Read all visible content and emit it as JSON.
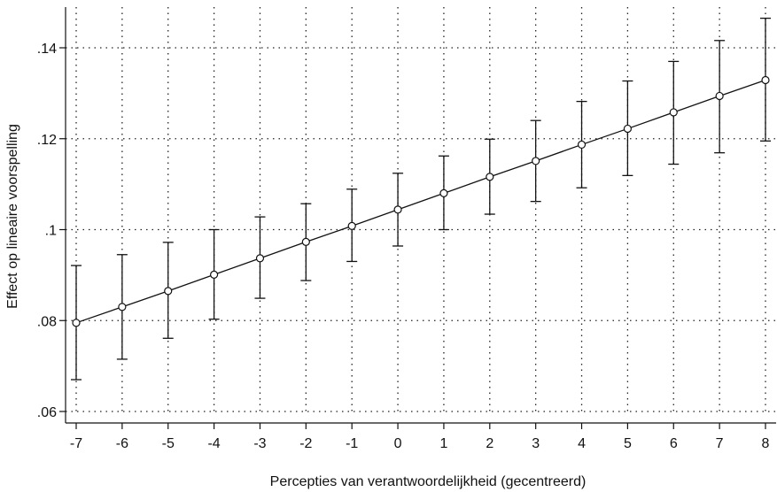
{
  "chart_data": {
    "type": "line",
    "title": "",
    "xlabel": "Percepties van verantwoordelijkheid (gecentreerd)",
    "ylabel": "Effect op lineaire voorspelling",
    "xlim": [
      -7,
      8
    ],
    "ylim": [
      0.06,
      0.14
    ],
    "x_ticks": [
      "-7",
      "-6",
      "-5",
      "-4",
      "-3",
      "-2",
      "-1",
      "0",
      "1",
      "2",
      "3",
      "4",
      "5",
      "6",
      "7",
      "8"
    ],
    "y_ticks": [
      {
        "value": 0.06,
        "label": ".06"
      },
      {
        "value": 0.08,
        "label": ".08"
      },
      {
        "value": 0.1,
        "label": ".1"
      },
      {
        "value": 0.12,
        "label": ".12"
      },
      {
        "value": 0.14,
        "label": ".14"
      }
    ],
    "grid": true,
    "series": [
      {
        "x": [
          -7,
          -6,
          -5,
          -4,
          -3,
          -2,
          -1,
          0,
          1,
          2,
          3,
          4,
          5,
          6,
          7,
          8
        ],
        "values": [
          0.0795,
          0.083,
          0.0865,
          0.0901,
          0.0937,
          0.0973,
          0.1008,
          0.1044,
          0.108,
          0.1116,
          0.1151,
          0.1187,
          0.1222,
          0.1258,
          0.1294,
          0.1329
        ],
        "ci_lower": [
          0.067,
          0.0715,
          0.0761,
          0.0803,
          0.0849,
          0.0888,
          0.093,
          0.0964,
          0.1,
          0.1034,
          0.1062,
          0.1092,
          0.1119,
          0.1144,
          0.1169,
          0.1195
        ],
        "ci_upper": [
          0.0921,
          0.0945,
          0.0972,
          0.1,
          0.1028,
          0.1057,
          0.1089,
          0.1124,
          0.1162,
          0.1199,
          0.124,
          0.1282,
          0.1327,
          0.137,
          0.1416,
          0.1465
        ]
      }
    ]
  }
}
